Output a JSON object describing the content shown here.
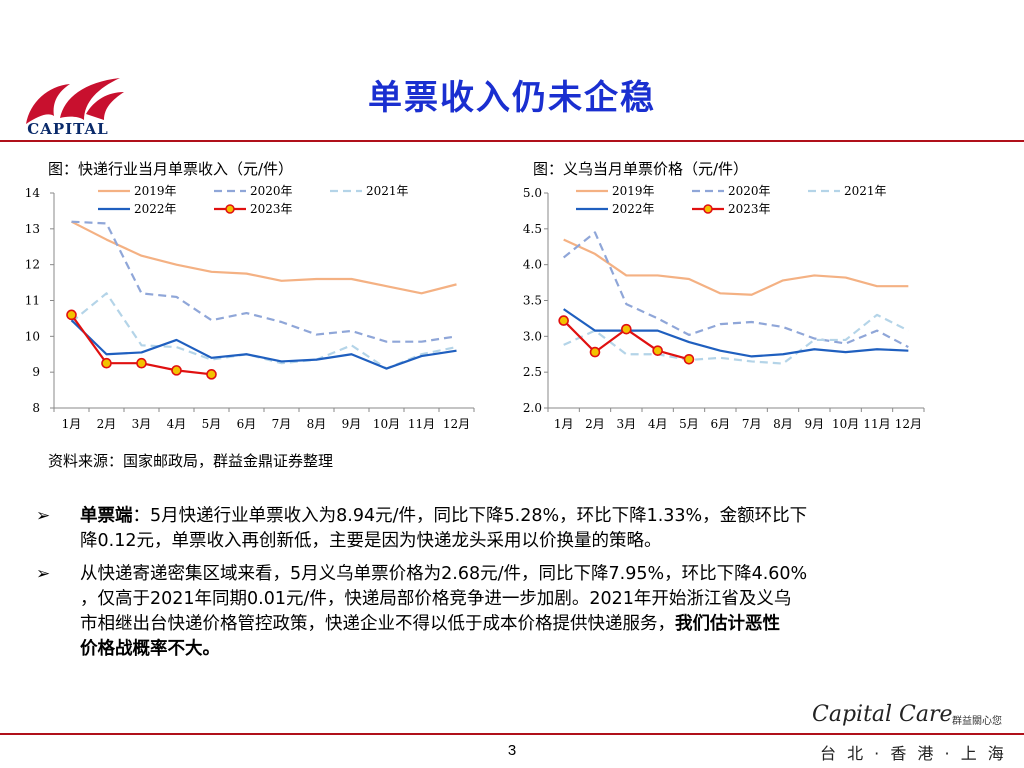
{
  "slide": {
    "title": "单票收入仍未企稳",
    "logo_text": "CAPITAL",
    "page_number": "3",
    "footer_brand": "Capital Care",
    "footer_brand_sub": "群益關心您",
    "footer_cities": "台 北 · 香 港 · 上 海",
    "source": "资料来源：国家邮政局，群益金鼎证券整理",
    "colors": {
      "title": "#1a2fd0",
      "rule": "#b0101a",
      "logo_red": "#c8102e",
      "logo_blue": "#0a2a6a"
    }
  },
  "bullets": [
    {
      "lines": [
        [
          {
            "t": "单票端",
            "b": true
          },
          {
            "t": "：5月快递行业单票收入为8.94元/件，同比下降5.28%，环比下降1.33%，金额环比下",
            "b": false
          }
        ],
        [
          {
            "t": "降0.12元，单票收入再创新低，主要是因为快递龙头采用以价换量的策略。",
            "b": false
          }
        ]
      ]
    },
    {
      "lines": [
        [
          {
            "t": "从快递寄递密集区域来看，5月义乌单票价格为2.68元/件，同比下降7.95%，环比下降4.60%",
            "b": false
          }
        ],
        [
          {
            "t": "，仅高于2021年同期0.01元/件，快递局部价格竞争进一步加剧。2021年开始浙江省及义乌",
            "b": false
          }
        ],
        [
          {
            "t": "市相继出台快递价格管控政策，快递企业不得以低于成本价格提供快递服务，",
            "b": false
          },
          {
            "t": "我们估计恶性",
            "b": true
          }
        ],
        [
          {
            "t": "价格战概率不大。",
            "b": true
          }
        ]
      ]
    }
  ],
  "chart_data": [
    {
      "type": "line",
      "title": "图：快递行业当月单票收入（元/件）",
      "categories": [
        "1月",
        "2月",
        "3月",
        "4月",
        "5月",
        "6月",
        "7月",
        "8月",
        "9月",
        "10月",
        "11月",
        "12月"
      ],
      "ylim": [
        8,
        14
      ],
      "yticks": [
        "8",
        "9",
        "10",
        "11",
        "12",
        "13",
        "14"
      ],
      "series": [
        {
          "name": "2019年",
          "color": "#f4b183",
          "dash": "",
          "marker": false,
          "values": [
            13.2,
            12.7,
            12.25,
            12.0,
            11.8,
            11.75,
            11.55,
            11.6,
            11.6,
            11.4,
            11.2,
            11.45
          ]
        },
        {
          "name": "2020年",
          "color": "#8fa6d8",
          "dash": "8,5",
          "marker": false,
          "values": [
            13.2,
            13.15,
            11.2,
            11.1,
            10.45,
            10.65,
            10.4,
            10.05,
            10.15,
            9.85,
            9.85,
            10.0
          ]
        },
        {
          "name": "2021年",
          "color": "#b4d4e8",
          "dash": "8,5",
          "marker": false,
          "values": [
            10.4,
            11.2,
            9.75,
            9.7,
            9.35,
            9.5,
            9.25,
            9.35,
            9.75,
            9.1,
            9.5,
            9.7
          ]
        },
        {
          "name": "2022年",
          "color": "#1f5fbf",
          "dash": "",
          "marker": false,
          "values": [
            10.45,
            9.5,
            9.55,
            9.9,
            9.4,
            9.5,
            9.3,
            9.35,
            9.5,
            9.1,
            9.45,
            9.6
          ]
        },
        {
          "name": "2023年",
          "color": "#e01010",
          "dash": "",
          "marker": true,
          "values": [
            10.6,
            9.25,
            9.25,
            9.05,
            8.94,
            null,
            null,
            null,
            null,
            null,
            null,
            null
          ]
        }
      ]
    },
    {
      "type": "line",
      "title": "图：义乌当月单票价格（元/件）",
      "categories": [
        "1月",
        "2月",
        "3月",
        "4月",
        "5月",
        "6月",
        "7月",
        "8月",
        "9月",
        "10月",
        "11月",
        "12月"
      ],
      "ylim": [
        2.0,
        5.0
      ],
      "yticks": [
        "2.0",
        "2.5",
        "3.0",
        "3.5",
        "4.0",
        "4.5",
        "5.0"
      ],
      "series": [
        {
          "name": "2019年",
          "color": "#f4b183",
          "dash": "",
          "marker": false,
          "values": [
            4.35,
            4.15,
            3.85,
            3.85,
            3.8,
            3.6,
            3.58,
            3.78,
            3.85,
            3.82,
            3.7,
            3.7
          ]
        },
        {
          "name": "2020年",
          "color": "#8fa6d8",
          "dash": "8,5",
          "marker": false,
          "values": [
            4.1,
            4.45,
            3.45,
            3.25,
            3.02,
            3.17,
            3.2,
            3.13,
            2.97,
            2.9,
            3.08,
            2.85
          ]
        },
        {
          "name": "2021年",
          "color": "#b4d4e8",
          "dash": "8,5",
          "marker": false,
          "values": [
            2.88,
            3.08,
            2.75,
            2.75,
            2.67,
            2.7,
            2.65,
            2.62,
            2.95,
            2.95,
            3.3,
            3.08
          ]
        },
        {
          "name": "2022年",
          "color": "#1f5fbf",
          "dash": "",
          "marker": false,
          "values": [
            3.38,
            3.08,
            3.08,
            3.08,
            2.92,
            2.8,
            2.72,
            2.75,
            2.82,
            2.78,
            2.82,
            2.8
          ]
        },
        {
          "name": "2023年",
          "color": "#e01010",
          "dash": "",
          "marker": true,
          "values": [
            3.22,
            2.78,
            3.1,
            2.8,
            2.68,
            null,
            null,
            null,
            null,
            null,
            null,
            null
          ]
        }
      ]
    }
  ]
}
